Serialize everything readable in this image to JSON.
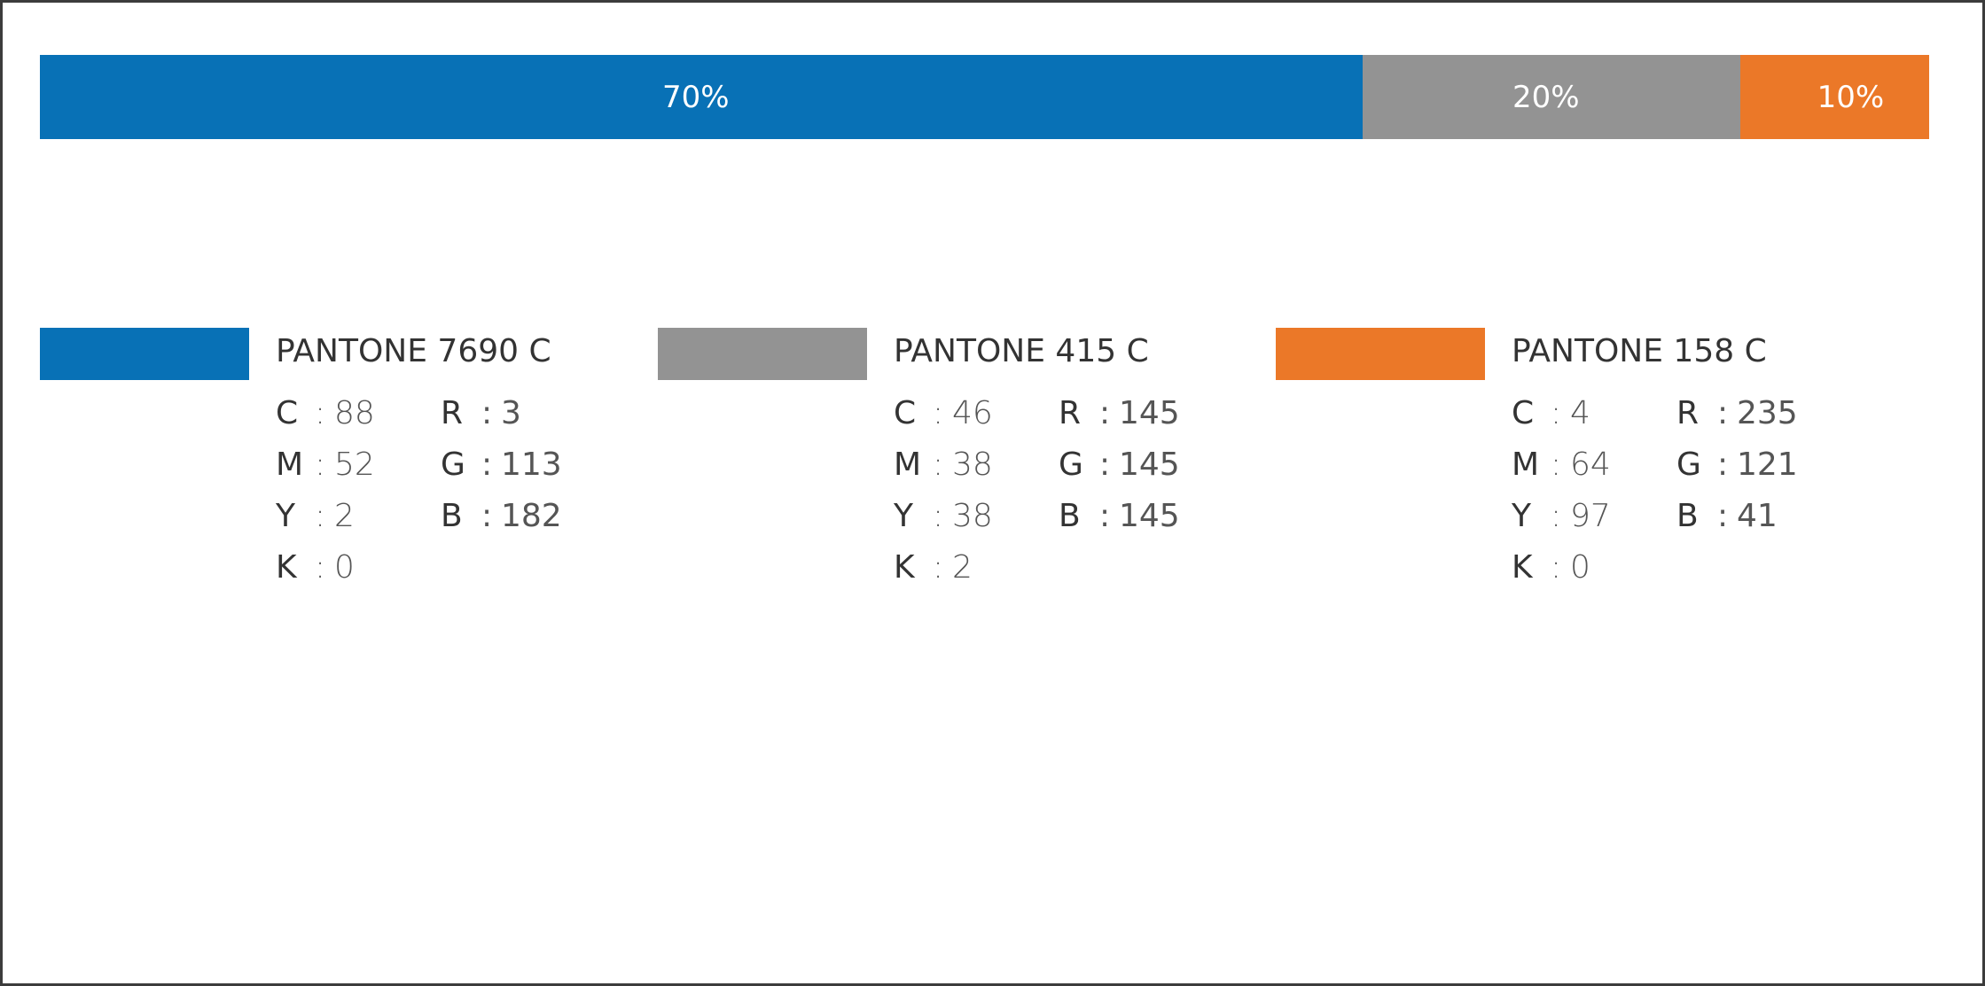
{
  "ratio_bar": {
    "segments": [
      {
        "label": "70%",
        "value": 70,
        "color": "#0871b6"
      },
      {
        "label": "20%",
        "value": 20,
        "color": "#939393"
      },
      {
        "label": "10%",
        "value": 10,
        "color": "#eb7828"
      }
    ]
  },
  "swatches": [
    {
      "name": "PANTONE 7690 C",
      "color": "#0871b6",
      "cmyk": {
        "C": "88",
        "M": "52",
        "Y": "2",
        "K": "0"
      },
      "rgb": {
        "R": "3",
        "G": "113",
        "B": "182"
      }
    },
    {
      "name": "PANTONE 415 C",
      "color": "#939393",
      "cmyk": {
        "C": "46",
        "M": "38",
        "Y": "38",
        "K": "2"
      },
      "rgb": {
        "R": "145",
        "G": "145",
        "B": "145"
      }
    },
    {
      "name": "PANTONE 158 C",
      "color": "#eb7828",
      "cmyk": {
        "C": "4",
        "M": "64",
        "Y": "97",
        "K": "0"
      },
      "rgb": {
        "R": "235",
        "G": "121",
        "B": "41"
      }
    }
  ],
  "labels": {
    "C": "C",
    "M": "M",
    "Y": "Y",
    "K": "K",
    "R": "R",
    "G": "G",
    "B": "B",
    "sep": ":"
  }
}
